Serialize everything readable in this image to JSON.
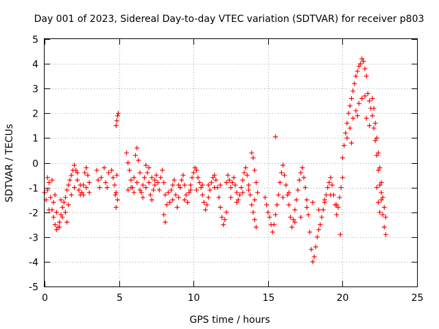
{
  "chart_data": {
    "type": "scatter",
    "title": "Day 001 of 2023, Sidereal Day-to-day VTEC variation (SDTVAR) for receiver p803",
    "xlabel": "GPS time / hours",
    "ylabel": "SDTVAR / TECUs",
    "xlim": [
      0,
      25
    ],
    "ylim": [
      -5,
      5
    ],
    "xticks": [
      0,
      5,
      10,
      15,
      20,
      25
    ],
    "yticks": [
      5,
      4,
      3,
      2,
      1,
      0,
      -1,
      -2,
      -3,
      -4,
      -5
    ],
    "grid": true,
    "marker": "+",
    "series": [
      {
        "name": "SDTVAR",
        "color": "#ff0000",
        "points": [
          [
            0.0,
            -1.2
          ],
          [
            0.1,
            -1.5
          ],
          [
            0.2,
            -1.1
          ],
          [
            0.3,
            -0.8
          ],
          [
            0.4,
            -1.4
          ],
          [
            0.5,
            -1.9
          ],
          [
            0.6,
            -2.2
          ],
          [
            0.7,
            -2.5
          ],
          [
            0.8,
            -2.7
          ],
          [
            0.9,
            -2.6
          ],
          [
            1.0,
            -2.4
          ],
          [
            1.1,
            -2.1
          ],
          [
            1.2,
            -1.8
          ],
          [
            1.3,
            -1.6
          ],
          [
            1.4,
            -1.4
          ],
          [
            1.5,
            -1.1
          ],
          [
            1.6,
            -0.9
          ],
          [
            1.7,
            -0.7
          ],
          [
            1.8,
            -0.5
          ],
          [
            1.9,
            -0.3
          ],
          [
            2.0,
            -0.1
          ],
          [
            2.1,
            -0.3
          ],
          [
            2.2,
            -0.7
          ],
          [
            2.3,
            -1.1
          ],
          [
            2.4,
            -1.3
          ],
          [
            2.5,
            -1.2
          ],
          [
            2.6,
            -0.9
          ],
          [
            2.7,
            -0.4
          ],
          [
            2.8,
            -0.2
          ],
          [
            2.9,
            -0.5
          ],
          [
            3.0,
            -0.8
          ],
          [
            0.2,
            -0.6
          ],
          [
            0.3,
            -1.9
          ],
          [
            0.5,
            -0.7
          ],
          [
            0.6,
            -1.6
          ],
          [
            0.8,
            -2.0
          ],
          [
            1.0,
            -2.6
          ],
          [
            1.2,
            -2.2
          ],
          [
            1.4,
            -2.0
          ],
          [
            1.6,
            -1.7
          ],
          [
            1.8,
            -1.3
          ],
          [
            2.0,
            -1.0
          ],
          [
            2.2,
            -0.4
          ],
          [
            2.4,
            -0.9
          ],
          [
            2.6,
            -1.3
          ],
          [
            2.8,
            -1.0
          ],
          [
            3.0,
            -1.2
          ],
          [
            0.7,
            -1.3
          ],
          [
            1.1,
            -1.5
          ],
          [
            1.5,
            -2.4
          ],
          [
            3.5,
            -0.3
          ],
          [
            3.6,
            -0.7
          ],
          [
            3.7,
            -1.0
          ],
          [
            3.8,
            -0.6
          ],
          [
            4.0,
            -0.2
          ],
          [
            4.1,
            -0.8
          ],
          [
            4.2,
            -1.0
          ],
          [
            4.3,
            -0.4
          ],
          [
            4.5,
            -0.3
          ],
          [
            4.6,
            -0.6
          ],
          [
            4.7,
            -0.9
          ],
          [
            4.8,
            -1.2
          ],
          [
            4.9,
            -1.5
          ],
          [
            4.8,
            1.5
          ],
          [
            4.85,
            1.7
          ],
          [
            4.9,
            1.9
          ],
          [
            4.95,
            2.0
          ],
          [
            4.8,
            -1.8
          ],
          [
            4.85,
            -0.5
          ],
          [
            4.75,
            -1.3
          ],
          [
            5.5,
            0.4
          ],
          [
            5.6,
            0.0
          ],
          [
            5.7,
            -0.3
          ],
          [
            5.8,
            -0.7
          ],
          [
            5.9,
            -1.0
          ],
          [
            6.0,
            -0.6
          ],
          [
            6.1,
            0.3
          ],
          [
            6.2,
            0.6
          ],
          [
            6.3,
            0.1
          ],
          [
            6.4,
            -0.4
          ],
          [
            6.5,
            -1.2
          ],
          [
            6.6,
            -0.9
          ],
          [
            6.7,
            -0.6
          ],
          [
            6.8,
            -0.1
          ],
          [
            6.9,
            -0.4
          ],
          [
            7.0,
            -0.8
          ],
          [
            7.1,
            -1.3
          ],
          [
            7.2,
            -1.5
          ],
          [
            7.3,
            -1.1
          ],
          [
            7.4,
            -0.7
          ],
          [
            7.5,
            -0.5
          ],
          [
            7.6,
            -0.8
          ],
          [
            7.7,
            -1.1
          ],
          [
            7.8,
            -0.6
          ],
          [
            7.9,
            -0.3
          ],
          [
            8.0,
            -0.8
          ],
          [
            8.1,
            -1.3
          ],
          [
            8.2,
            -1.7
          ],
          [
            8.1,
            -2.4
          ],
          [
            8.0,
            -2.1
          ],
          [
            5.6,
            -1.1
          ],
          [
            5.8,
            -1.0
          ],
          [
            6.0,
            -1.2
          ],
          [
            6.2,
            -0.8
          ],
          [
            6.4,
            -1.1
          ],
          [
            6.6,
            -1.4
          ],
          [
            6.8,
            -1.0
          ],
          [
            7.0,
            -0.2
          ],
          [
            7.2,
            -0.6
          ],
          [
            7.4,
            -0.9
          ],
          [
            8.3,
            -1.2
          ],
          [
            8.4,
            -1.6
          ],
          [
            8.5,
            -1.1
          ],
          [
            8.6,
            -0.9
          ],
          [
            8.7,
            -0.7
          ],
          [
            8.8,
            -1.3
          ],
          [
            8.9,
            -1.8
          ],
          [
            9.0,
            -1.4
          ],
          [
            9.1,
            -1.0
          ],
          [
            9.2,
            -0.7
          ],
          [
            9.3,
            -0.5
          ],
          [
            9.4,
            -0.9
          ],
          [
            9.5,
            -1.3
          ],
          [
            9.6,
            -1.6
          ],
          [
            9.7,
            -1.2
          ],
          [
            9.8,
            -0.9
          ],
          [
            9.9,
            -0.6
          ],
          [
            10.0,
            -0.4
          ],
          [
            10.1,
            -0.2
          ],
          [
            10.2,
            -0.3
          ],
          [
            10.3,
            -0.6
          ],
          [
            10.4,
            -0.8
          ],
          [
            10.5,
            -1.0
          ],
          [
            10.6,
            -1.3
          ],
          [
            10.7,
            -1.6
          ],
          [
            10.8,
            -1.9
          ],
          [
            10.9,
            -1.7
          ],
          [
            11.0,
            -1.4
          ],
          [
            11.1,
            -1.1
          ],
          [
            11.2,
            -0.8
          ],
          [
            11.3,
            -0.6
          ],
          [
            11.4,
            -0.5
          ],
          [
            11.5,
            -0.7
          ],
          [
            11.6,
            -1.0
          ],
          [
            11.7,
            -1.4
          ],
          [
            11.8,
            -1.8
          ],
          [
            11.9,
            -2.2
          ],
          [
            12.0,
            -2.5
          ],
          [
            12.1,
            -2.3
          ],
          [
            12.2,
            -2.0
          ],
          [
            8.6,
            -1.5
          ],
          [
            9.0,
            -0.9
          ],
          [
            9.4,
            -1.5
          ],
          [
            9.8,
            -1.1
          ],
          [
            10.2,
            -1.1
          ],
          [
            10.6,
            -0.9
          ],
          [
            11.0,
            -0.9
          ],
          [
            11.4,
            -1.0
          ],
          [
            11.8,
            -0.9
          ],
          [
            12.2,
            -0.8
          ],
          [
            12.3,
            -0.5
          ],
          [
            12.4,
            -0.7
          ],
          [
            12.5,
            -1.0
          ],
          [
            12.6,
            -0.8
          ],
          [
            12.7,
            -0.6
          ],
          [
            12.8,
            -0.9
          ],
          [
            12.9,
            -1.2
          ],
          [
            13.0,
            -1.5
          ],
          [
            13.1,
            -1.3
          ],
          [
            13.2,
            -1.0
          ],
          [
            13.3,
            -0.7
          ],
          [
            13.4,
            -0.4
          ],
          [
            13.5,
            -0.2
          ],
          [
            13.6,
            -0.5
          ],
          [
            13.7,
            -0.9
          ],
          [
            13.8,
            -1.3
          ],
          [
            13.9,
            -1.7
          ],
          [
            14.0,
            -2.0
          ],
          [
            14.1,
            -2.3
          ],
          [
            14.2,
            -2.6
          ],
          [
            13.9,
            0.4
          ],
          [
            14.0,
            0.2
          ],
          [
            14.1,
            -0.3
          ],
          [
            14.2,
            -0.8
          ],
          [
            14.3,
            -1.2
          ],
          [
            12.5,
            -1.4
          ],
          [
            12.9,
            -1.6
          ],
          [
            13.3,
            -1.2
          ],
          [
            13.7,
            -1.1
          ],
          [
            14.1,
            -1.5
          ],
          [
            14.8,
            -1.4
          ],
          [
            14.9,
            -1.7
          ],
          [
            15.0,
            -2.0
          ],
          [
            15.1,
            -2.2
          ],
          [
            15.2,
            -2.5
          ],
          [
            15.3,
            -2.8
          ],
          [
            15.4,
            -2.5
          ],
          [
            15.5,
            -2.1
          ],
          [
            15.6,
            -1.7
          ],
          [
            15.7,
            -1.3
          ],
          [
            15.5,
            1.05
          ],
          [
            15.8,
            -0.8
          ],
          [
            15.9,
            -0.4
          ],
          [
            16.0,
            -0.1
          ],
          [
            16.1,
            -0.5
          ],
          [
            16.2,
            -0.9
          ],
          [
            16.3,
            -1.3
          ],
          [
            16.4,
            -1.7
          ],
          [
            16.5,
            -2.2
          ],
          [
            16.6,
            -2.6
          ],
          [
            16.7,
            -2.3
          ],
          [
            16.8,
            -1.9
          ],
          [
            16.9,
            -1.5
          ],
          [
            17.0,
            -1.1
          ],
          [
            17.1,
            -0.7
          ],
          [
            17.2,
            -0.4
          ],
          [
            17.3,
            -0.2
          ],
          [
            17.4,
            -0.6
          ],
          [
            17.5,
            -1.0
          ],
          [
            17.6,
            -1.5
          ],
          [
            17.7,
            -2.1
          ],
          [
            17.8,
            -2.8
          ],
          [
            17.9,
            -3.5
          ],
          [
            18.0,
            -4.0
          ],
          [
            18.1,
            -3.8
          ],
          [
            18.2,
            -3.4
          ],
          [
            18.3,
            -3.0
          ],
          [
            18.4,
            -2.7
          ],
          [
            18.5,
            -2.5
          ],
          [
            18.6,
            -2.2
          ],
          [
            16.0,
            -1.4
          ],
          [
            16.4,
            -1.2
          ],
          [
            16.8,
            -2.4
          ],
          [
            17.2,
            -2.2
          ],
          [
            17.6,
            -1.8
          ],
          [
            18.0,
            -1.6
          ],
          [
            18.4,
            -1.9
          ],
          [
            18.8,
            -1.5
          ],
          [
            19.2,
            -1.3
          ],
          [
            19.6,
            -1.7
          ],
          [
            18.7,
            -1.9
          ],
          [
            18.8,
            -1.6
          ],
          [
            18.9,
            -1.3
          ],
          [
            19.0,
            -1.0
          ],
          [
            19.1,
            -0.8
          ],
          [
            19.2,
            -0.6
          ],
          [
            19.3,
            -0.9
          ],
          [
            19.4,
            -1.3
          ],
          [
            19.5,
            -1.7
          ],
          [
            19.6,
            -2.1
          ],
          [
            19.7,
            -1.8
          ],
          [
            19.8,
            -1.4
          ],
          [
            19.9,
            -1.0
          ],
          [
            20.0,
            -0.6
          ],
          [
            19.85,
            -2.9
          ],
          [
            20.0,
            0.2
          ],
          [
            20.1,
            0.7
          ],
          [
            20.2,
            1.2
          ],
          [
            20.3,
            1.6
          ],
          [
            20.4,
            2.0
          ],
          [
            20.5,
            2.3
          ],
          [
            20.6,
            2.6
          ],
          [
            20.7,
            2.9
          ],
          [
            20.8,
            3.2
          ],
          [
            20.9,
            3.5
          ],
          [
            21.0,
            3.7
          ],
          [
            21.1,
            3.9
          ],
          [
            21.2,
            4.0
          ],
          [
            21.3,
            4.2
          ],
          [
            21.4,
            4.1
          ],
          [
            21.5,
            3.8
          ],
          [
            21.6,
            3.5
          ],
          [
            20.3,
            1.0
          ],
          [
            20.5,
            1.4
          ],
          [
            20.7,
            1.8
          ],
          [
            20.9,
            2.1
          ],
          [
            21.1,
            2.4
          ],
          [
            21.3,
            2.6
          ],
          [
            21.5,
            2.7
          ],
          [
            21.7,
            2.8
          ],
          [
            21.8,
            2.5
          ],
          [
            21.9,
            2.2
          ],
          [
            22.0,
            1.9
          ],
          [
            22.1,
            1.4
          ],
          [
            22.2,
            0.9
          ],
          [
            22.3,
            0.3
          ],
          [
            22.4,
            -0.3
          ],
          [
            22.5,
            -0.9
          ],
          [
            22.6,
            -1.5
          ],
          [
            22.7,
            -2.1
          ],
          [
            22.8,
            -2.6
          ],
          [
            22.9,
            -2.9
          ],
          [
            22.0,
            2.6
          ],
          [
            22.1,
            2.2
          ],
          [
            22.2,
            1.6
          ],
          [
            22.3,
            1.0
          ],
          [
            22.4,
            0.4
          ],
          [
            22.5,
            -0.2
          ],
          [
            22.6,
            -0.8
          ],
          [
            22.7,
            -1.4
          ],
          [
            22.8,
            -1.8
          ],
          [
            22.9,
            -2.2
          ],
          [
            22.3,
            -1.0
          ],
          [
            22.4,
            -1.6
          ],
          [
            22.5,
            -2.0
          ],
          [
            22.6,
            -1.2
          ],
          [
            21.6,
            1.8
          ],
          [
            21.8,
            1.5
          ],
          [
            21.0,
            1.9
          ],
          [
            20.6,
            0.8
          ]
        ]
      }
    ]
  }
}
